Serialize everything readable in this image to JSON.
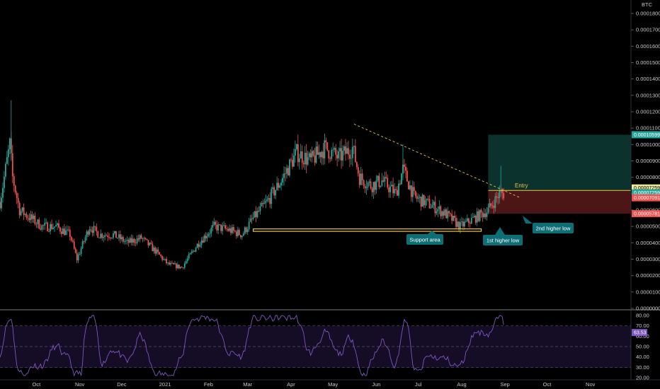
{
  "header": {
    "currency": "BTC"
  },
  "colors": {
    "up": "#26a69a",
    "down": "#ef5350",
    "background": "#000000",
    "axis_text": "#c8c8c8",
    "rsi_line": "#7e57c2",
    "rsi_band": "#1a1030",
    "support": "#e8c547",
    "trendline": "#e8c547",
    "entry_line": "#e8c547",
    "target_zone": "#0d3b35",
    "stop_zone": "#5a1a1a",
    "callout": "#0e6e76"
  },
  "price_axis": {
    "ticks": [
      "0.00018000",
      "0.00017000",
      "0.00016000",
      "0.00015000",
      "0.00014000",
      "0.00013000",
      "0.00012000",
      "0.00011000",
      "0.00010000",
      "0.00009000",
      "0.00008000",
      "0.00007000",
      "0.00006000",
      "0.00005000",
      "0.00004000",
      "0.00003000",
      "0.00002000",
      "0.00001000",
      "0.00000000"
    ],
    "tags": [
      {
        "text": "0.00010599",
        "value": 0.00010599,
        "color": "#26a69a",
        "text_color": "#ffffff"
      },
      {
        "text": "0.00007259",
        "value": 7.35e-05,
        "color": "#e8e8a0",
        "text_color": "#000000"
      },
      {
        "text": "0.00007259",
        "value": 7.05e-05,
        "color": "#26a69a",
        "text_color": "#ffffff"
      },
      {
        "text": "0.00007091",
        "value": 6.75e-05,
        "color": "#ef5350",
        "text_color": "#ffffff"
      },
      {
        "text": "0.00005781",
        "value": 5.781e-05,
        "color": "#ef5350",
        "text_color": "#ffffff"
      }
    ]
  },
  "rsi_axis": {
    "ticks": [
      "80.00",
      "70.00",
      "60.00",
      "50.00",
      "40.00",
      "30.00",
      "20.00"
    ],
    "current": "63.53"
  },
  "time_axis": {
    "labels": [
      "Oct",
      "Nov",
      "Dec",
      "2021",
      "Feb",
      "Mar",
      "Apr",
      "May",
      "Jun",
      "Jul",
      "Aug",
      "Sep",
      "Oct",
      "Nov"
    ]
  },
  "annotations": {
    "entry": "Entry",
    "support": "Support area",
    "higher_low_1": "1st higher low",
    "higher_low_2": "2nd higher low"
  },
  "chart_data": {
    "type": "candlestick",
    "y_unit": "BTC",
    "ylim": [
      0,
      0.000185
    ],
    "x_range": [
      "2020-09-05",
      "2021-11-30"
    ],
    "price_points": [
      [
        "2020-09-05",
        6.5e-05
      ],
      [
        "2020-09-12",
        0.0001
      ],
      [
        "2020-09-14",
        8e-05
      ],
      [
        "2020-09-19",
        6e-05
      ],
      [
        "2020-09-27",
        5.5e-05
      ],
      [
        "2020-10-05",
        5e-05
      ],
      [
        "2020-10-15",
        5e-05
      ],
      [
        "2020-10-25",
        4.5e-05
      ],
      [
        "2020-10-30",
        3e-05
      ],
      [
        "2020-11-08",
        5e-05
      ],
      [
        "2020-11-15",
        4.5e-05
      ],
      [
        "2020-11-25",
        4.5e-05
      ],
      [
        "2020-12-05",
        4e-05
      ],
      [
        "2020-12-15",
        4.3e-05
      ],
      [
        "2020-12-25",
        3.5e-05
      ],
      [
        "2021-01-03",
        2.7e-05
      ],
      [
        "2021-01-13",
        2.5e-05
      ],
      [
        "2021-01-25",
        4e-05
      ],
      [
        "2021-02-05",
        5e-05
      ],
      [
        "2021-02-15",
        4.8e-05
      ],
      [
        "2021-02-25",
        4.5e-05
      ],
      [
        "2021-03-05",
        5.5e-05
      ],
      [
        "2021-03-15",
        6.5e-05
      ],
      [
        "2021-03-25",
        7.8e-05
      ],
      [
        "2021-04-05",
        9.5e-05
      ],
      [
        "2021-04-15",
        9e-05
      ],
      [
        "2021-04-25",
        9.8e-05
      ],
      [
        "2021-05-05",
        9.2e-05
      ],
      [
        "2021-05-15",
        9.8e-05
      ],
      [
        "2021-05-20",
        8e-05
      ],
      [
        "2021-05-28",
        7.5e-05
      ],
      [
        "2021-06-05",
        7.8e-05
      ],
      [
        "2021-06-15",
        7e-05
      ],
      [
        "2021-06-20",
        8.5e-05
      ],
      [
        "2021-06-28",
        6.8e-05
      ],
      [
        "2021-07-10",
        6.3e-05
      ],
      [
        "2021-07-20",
        5.8e-05
      ],
      [
        "2021-07-31",
        5e-05
      ],
      [
        "2021-08-10",
        5.5e-05
      ],
      [
        "2021-08-20",
        6e-05
      ],
      [
        "2021-08-28",
        7e-05
      ]
    ],
    "rsi": {
      "overbought": 70,
      "oversold": 30,
      "mid": 50,
      "last": 63.53
    },
    "lines": {
      "support": [
        4.85e-05,
        4.7e-05
      ],
      "trendline_from": [
        "2021-05-16",
        0.0001125
      ],
      "trendline_to": [
        "2021-08-30",
        6.5e-05
      ],
      "entry": 7.2e-05,
      "target": 0.00010599,
      "stop": 5.781e-05
    }
  }
}
